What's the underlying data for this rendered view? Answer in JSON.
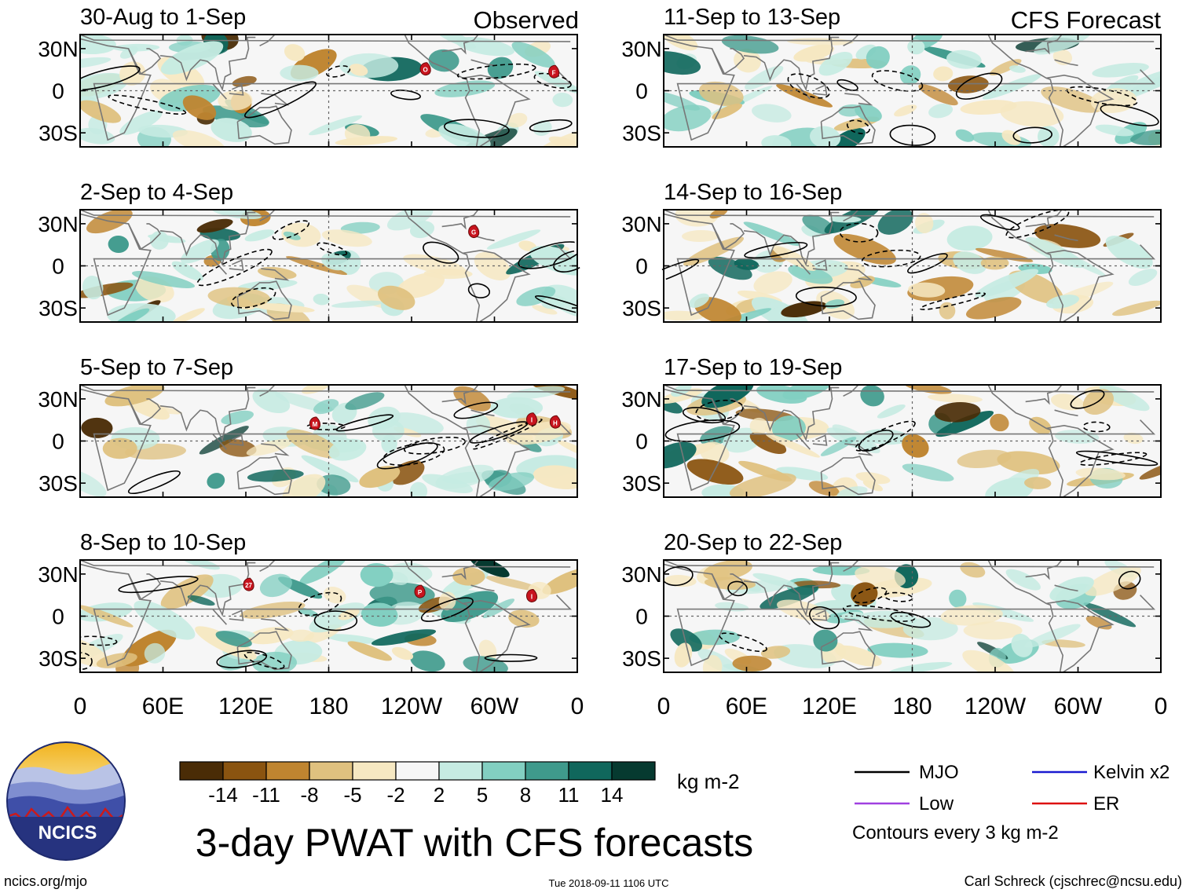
{
  "chart_data": {
    "type": "heatmap",
    "title": "3-day PWAT with CFS forecasts",
    "units": "kg m-2",
    "column_headers": {
      "observed": "Observed",
      "forecast": "CFS Forecast"
    },
    "x_ticks": [
      "0",
      "60E",
      "120E",
      "180",
      "120W",
      "60W",
      "0"
    ],
    "y_ticks": [
      "30N",
      "0",
      "30S"
    ],
    "xlim": [
      0,
      360
    ],
    "ylim": [
      -40,
      40
    ],
    "colorbar": {
      "boundaries": [
        "-14",
        "-11",
        "-8",
        "-5",
        "-2",
        "2",
        "5",
        "8",
        "11",
        "14"
      ],
      "colors": [
        "#4a2c06",
        "#8a5410",
        "#bf8530",
        "#dfc17f",
        "#f6e8c2",
        "#f6f6f6",
        "#c6ebe2",
        "#82cfc1",
        "#3f9a8c",
        "#10675c",
        "#063a30"
      ]
    },
    "panels": [
      {
        "id": "obs-1",
        "column": "observed",
        "label": "30-Aug to 1-Sep",
        "storms": [
          {
            "label": "O",
            "lon": 250,
            "lat": 15
          },
          {
            "label": "F",
            "lon": 343,
            "lat": 13
          }
        ]
      },
      {
        "id": "obs-2",
        "column": "observed",
        "label": "2-Sep to 4-Sep",
        "storms": [
          {
            "label": "G",
            "lon": 285,
            "lat": 24
          }
        ]
      },
      {
        "id": "obs-3",
        "column": "observed",
        "label": "5-Sep to 7-Sep",
        "storms": [
          {
            "label": "M",
            "lon": 170,
            "lat": 12
          },
          {
            "label": "I",
            "lon": 327,
            "lat": 15
          },
          {
            "label": "H",
            "lon": 344,
            "lat": 13
          }
        ]
      },
      {
        "id": "obs-4",
        "column": "observed",
        "label": "8-Sep to 10-Sep",
        "storms": [
          {
            "label": "27",
            "lon": 122,
            "lat": 22
          },
          {
            "label": "P",
            "lon": 246,
            "lat": 17
          },
          {
            "label": "I",
            "lon": 327,
            "lat": 14
          }
        ]
      },
      {
        "id": "fc-1",
        "column": "forecast",
        "label": "11-Sep to 13-Sep",
        "storms": []
      },
      {
        "id": "fc-2",
        "column": "forecast",
        "label": "14-Sep to 16-Sep",
        "storms": []
      },
      {
        "id": "fc-3",
        "column": "forecast",
        "label": "17-Sep to 19-Sep",
        "storms": []
      },
      {
        "id": "fc-4",
        "column": "forecast",
        "label": "20-Sep to 22-Sep",
        "storms": []
      }
    ]
  },
  "legend": {
    "items": [
      {
        "label": "MJO",
        "color": "#000000"
      },
      {
        "label": "Kelvin x2",
        "color": "#1a1ad0"
      },
      {
        "label": "Low",
        "color": "#a040e0"
      },
      {
        "label": "ER",
        "color": "#dd1111"
      }
    ],
    "contour_note": "Contours every 3 kg m-2"
  },
  "logo": {
    "text": "NCICS"
  },
  "footer": {
    "left": "ncics.org/mjo",
    "center": "Tue 2018-09-11 1106 UTC",
    "right": "Carl Schreck (cjschrec@ncsu.edu)"
  }
}
